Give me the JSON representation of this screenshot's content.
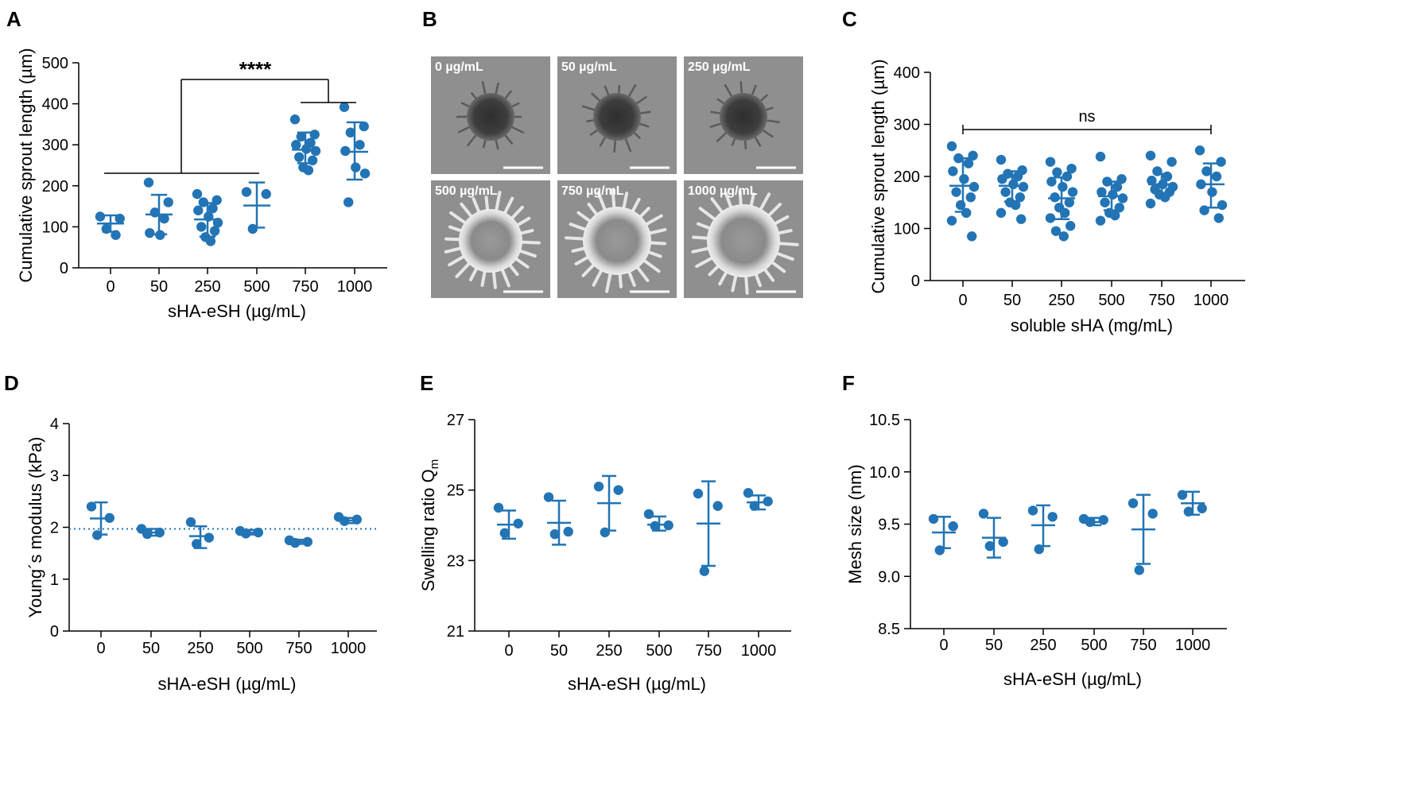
{
  "colors": {
    "accent": "#2274b5",
    "axis": "#000000",
    "image_bg": "#8f8f8f"
  },
  "chart_data": [
    {
      "id": "A",
      "panel_letter": "A",
      "type": "scatter",
      "title": "",
      "xlabel": "sHA-eSH (µg/mL)",
      "ylabel": "Cumulative sprout length (µm)",
      "categories": [
        "0",
        "50",
        "250",
        "500",
        "750",
        "1000"
      ],
      "ylim": [
        0,
        500
      ],
      "yticks": [
        0,
        100,
        200,
        300,
        400,
        500
      ],
      "ytick_labels": [
        "0",
        "100",
        "200",
        "300",
        "400",
        "500"
      ],
      "series": [
        {
          "category": "0",
          "mean": 108,
          "sd_low": 88,
          "sd_high": 128,
          "points": [
            125,
            120,
            95,
            80
          ]
        },
        {
          "category": "50",
          "mean": 130,
          "sd_low": 82,
          "sd_high": 178,
          "points": [
            208,
            160,
            135,
            120,
            85,
            80
          ]
        },
        {
          "category": "250",
          "mean": 118,
          "sd_low": 76,
          "sd_high": 158,
          "points": [
            180,
            165,
            160,
            145,
            140,
            125,
            110,
            100,
            90,
            75,
            65
          ]
        },
        {
          "category": "500",
          "mean": 152,
          "sd_low": 98,
          "sd_high": 208,
          "points": [
            185,
            180,
            95
          ]
        },
        {
          "category": "750",
          "mean": 288,
          "sd_low": 255,
          "sd_high": 330,
          "points": [
            362,
            325,
            320,
            305,
            300,
            290,
            285,
            270,
            262,
            245,
            238
          ]
        },
        {
          "category": "1000",
          "mean": 283,
          "sd_low": 215,
          "sd_high": 355,
          "points": [
            392,
            345,
            330,
            300,
            285,
            245,
            230,
            160
          ]
        }
      ],
      "significance": {
        "label": "****"
      }
    },
    {
      "id": "C",
      "panel_letter": "C",
      "type": "scatter",
      "title": "",
      "xlabel": "soluble sHA (mg/mL)",
      "ylabel": "Cumulative sprout length (µm)",
      "categories": [
        "0",
        "50",
        "250",
        "500",
        "750",
        "1000"
      ],
      "ylim": [
        0,
        400
      ],
      "yticks": [
        0,
        100,
        200,
        300,
        400
      ],
      "ytick_labels": [
        "0",
        "100",
        "200",
        "300",
        "400"
      ],
      "series": [
        {
          "category": "0",
          "mean": 182,
          "sd_low": 132,
          "sd_high": 235,
          "points": [
            258,
            240,
            235,
            225,
            210,
            195,
            180,
            170,
            160,
            145,
            130,
            115,
            85
          ]
        },
        {
          "category": "50",
          "mean": 182,
          "sd_low": 152,
          "sd_high": 210,
          "points": [
            232,
            212,
            205,
            200,
            195,
            185,
            180,
            170,
            160,
            150,
            145,
            130,
            118
          ]
        },
        {
          "category": "250",
          "mean": 158,
          "sd_low": 118,
          "sd_high": 198,
          "points": [
            228,
            215,
            208,
            200,
            190,
            180,
            170,
            160,
            150,
            140,
            130,
            120,
            105,
            95,
            85
          ]
        },
        {
          "category": "500",
          "mean": 162,
          "sd_low": 135,
          "sd_high": 190,
          "points": [
            238,
            195,
            190,
            180,
            170,
            165,
            158,
            150,
            140,
            130,
            125,
            115
          ]
        },
        {
          "category": "750",
          "mean": 185,
          "sd_low": 168,
          "sd_high": 205,
          "points": [
            240,
            228,
            210,
            200,
            192,
            185,
            180,
            175,
            170,
            165,
            160,
            148
          ]
        },
        {
          "category": "1000",
          "mean": 185,
          "sd_low": 140,
          "sd_high": 225,
          "points": [
            250,
            228,
            210,
            200,
            185,
            170,
            145,
            135,
            120
          ]
        }
      ],
      "significance": {
        "label": "ns"
      }
    },
    {
      "id": "D",
      "panel_letter": "D",
      "type": "scatter",
      "title": "",
      "xlabel": "sHA-eSH (µg/mL)",
      "ylabel": "Young´s modulus (kPa)",
      "categories": [
        "0",
        "50",
        "250",
        "500",
        "750",
        "1000"
      ],
      "ylim": [
        0,
        4
      ],
      "yticks": [
        0,
        1,
        2,
        3,
        4
      ],
      "ytick_labels": [
        "0",
        "1",
        "2",
        "3",
        "4"
      ],
      "reference_line": 1.97,
      "series": [
        {
          "category": "0",
          "mean": 2.17,
          "sd_low": 1.86,
          "sd_high": 2.48,
          "points": [
            2.4,
            2.18,
            1.85
          ]
        },
        {
          "category": "50",
          "mean": 1.9,
          "sd_low": 1.84,
          "sd_high": 1.97,
          "points": [
            1.97,
            1.9,
            1.87
          ]
        },
        {
          "category": "250",
          "mean": 1.83,
          "sd_low": 1.6,
          "sd_high": 2.02,
          "points": [
            2.1,
            1.8,
            1.68
          ]
        },
        {
          "category": "500",
          "mean": 1.9,
          "sd_low": 1.86,
          "sd_high": 1.95,
          "points": [
            1.93,
            1.9,
            1.88
          ]
        },
        {
          "category": "750",
          "mean": 1.72,
          "sd_low": 1.68,
          "sd_high": 1.76,
          "points": [
            1.75,
            1.72,
            1.7
          ]
        },
        {
          "category": "1000",
          "mean": 2.13,
          "sd_low": 2.08,
          "sd_high": 2.18,
          "points": [
            2.2,
            2.15,
            2.12
          ]
        }
      ]
    },
    {
      "id": "E",
      "panel_letter": "E",
      "type": "scatter",
      "title": "",
      "xlabel": "sHA-eSH (µg/mL)",
      "ylabel": "Swelling ratio Q",
      "ylabel_sub": "m",
      "categories": [
        "0",
        "50",
        "250",
        "500",
        "750",
        "1000"
      ],
      "ylim": [
        21,
        27
      ],
      "yticks": [
        21,
        23,
        25,
        27
      ],
      "ytick_labels": [
        "21",
        "23",
        "25",
        "27"
      ],
      "series": [
        {
          "category": "0",
          "mean": 24.02,
          "sd_low": 23.62,
          "sd_high": 24.42,
          "points": [
            24.5,
            24.05,
            23.78
          ]
        },
        {
          "category": "50",
          "mean": 24.07,
          "sd_low": 23.45,
          "sd_high": 24.7,
          "points": [
            24.8,
            23.82,
            23.75
          ]
        },
        {
          "category": "250",
          "mean": 24.63,
          "sd_low": 23.85,
          "sd_high": 25.4,
          "points": [
            25.1,
            25.0,
            23.8
          ]
        },
        {
          "category": "500",
          "mean": 24.02,
          "sd_low": 23.85,
          "sd_high": 24.25,
          "points": [
            24.32,
            24.0,
            23.98
          ]
        },
        {
          "category": "750",
          "mean": 24.05,
          "sd_low": 22.85,
          "sd_high": 25.25,
          "points": [
            24.9,
            24.55,
            22.7
          ]
        },
        {
          "category": "1000",
          "mean": 24.65,
          "sd_low": 24.45,
          "sd_high": 24.85,
          "points": [
            24.92,
            24.68,
            24.55
          ]
        }
      ]
    },
    {
      "id": "F",
      "panel_letter": "F",
      "type": "scatter",
      "title": "",
      "xlabel": "sHA-eSH (µg/mL)",
      "ylabel": "Mesh size (nm)",
      "categories": [
        "0",
        "50",
        "250",
        "500",
        "750",
        "1000"
      ],
      "ylim": [
        8.5,
        10.5
      ],
      "yticks": [
        8.5,
        9.0,
        9.5,
        10.0,
        10.5
      ],
      "ytick_labels": [
        "8.5",
        "9.0",
        "9.5",
        "10.0",
        "10.5"
      ],
      "series": [
        {
          "category": "0",
          "mean": 9.42,
          "sd_low": 9.27,
          "sd_high": 9.57,
          "points": [
            9.55,
            9.48,
            9.25
          ]
        },
        {
          "category": "50",
          "mean": 9.37,
          "sd_low": 9.18,
          "sd_high": 9.56,
          "points": [
            9.6,
            9.33,
            9.29
          ]
        },
        {
          "category": "250",
          "mean": 9.49,
          "sd_low": 9.29,
          "sd_high": 9.68,
          "points": [
            9.63,
            9.57,
            9.26
          ]
        },
        {
          "category": "500",
          "mean": 9.52,
          "sd_low": 9.49,
          "sd_high": 9.56,
          "points": [
            9.55,
            9.54,
            9.52
          ]
        },
        {
          "category": "750",
          "mean": 9.45,
          "sd_low": 9.12,
          "sd_high": 9.78,
          "points": [
            9.7,
            9.6,
            9.06
          ]
        },
        {
          "category": "1000",
          "mean": 9.7,
          "sd_low": 9.59,
          "sd_high": 9.81,
          "points": [
            9.78,
            9.65,
            9.62
          ]
        }
      ]
    }
  ],
  "panel_b": {
    "letter": "B",
    "images": [
      {
        "label": "0 µg/mL"
      },
      {
        "label": "50 µg/mL"
      },
      {
        "label": "250 µg/mL"
      },
      {
        "label": "500 µg/mL"
      },
      {
        "label": "750 µg/mL"
      },
      {
        "label": "1000 µg/mL"
      }
    ]
  }
}
